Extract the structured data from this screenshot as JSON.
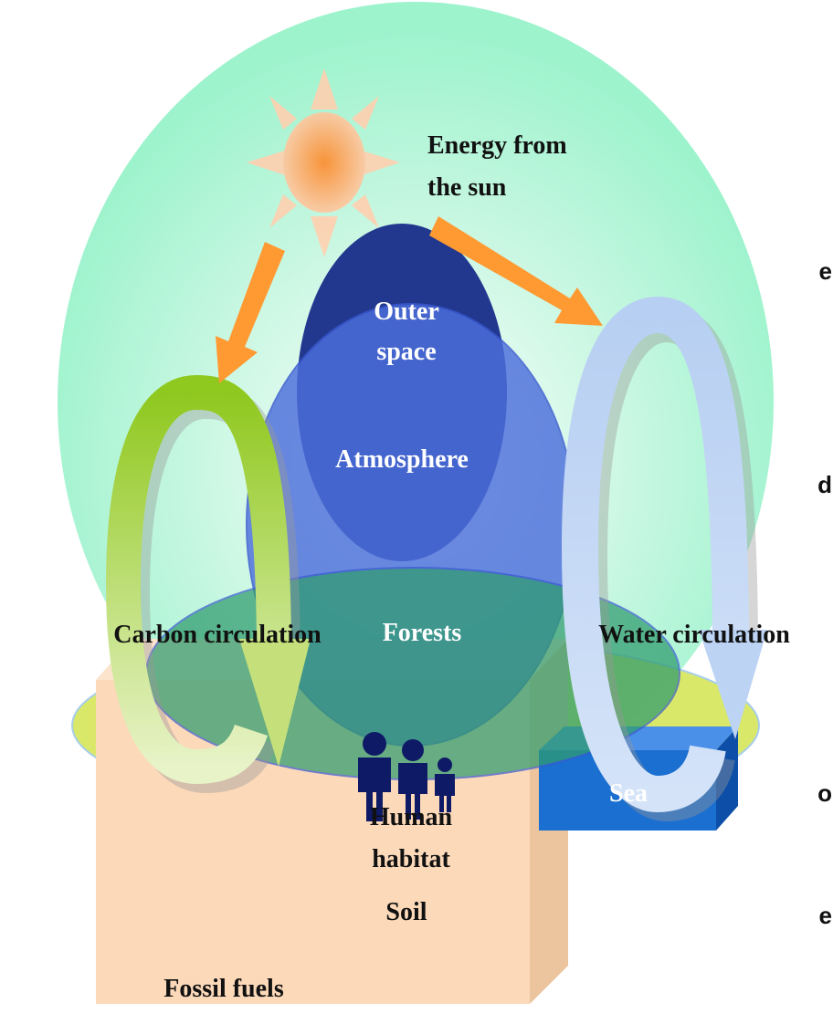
{
  "energy_label": [
    "Energy from",
    "the sun"
  ],
  "outer_space_label": [
    "Outer",
    "space"
  ],
  "atmosphere_label": "Atmosphere",
  "forests_label": "Forests",
  "carbon_label": "Carbon circulation",
  "water_label": "Water circulation",
  "human_label": [
    "Human",
    "habitat"
  ],
  "soil_label": "Soil",
  "sea_label": "Sea",
  "fossil_label": "Fossil fuels",
  "edge_fragments": [
    "e",
    "d",
    "o",
    "e"
  ]
}
